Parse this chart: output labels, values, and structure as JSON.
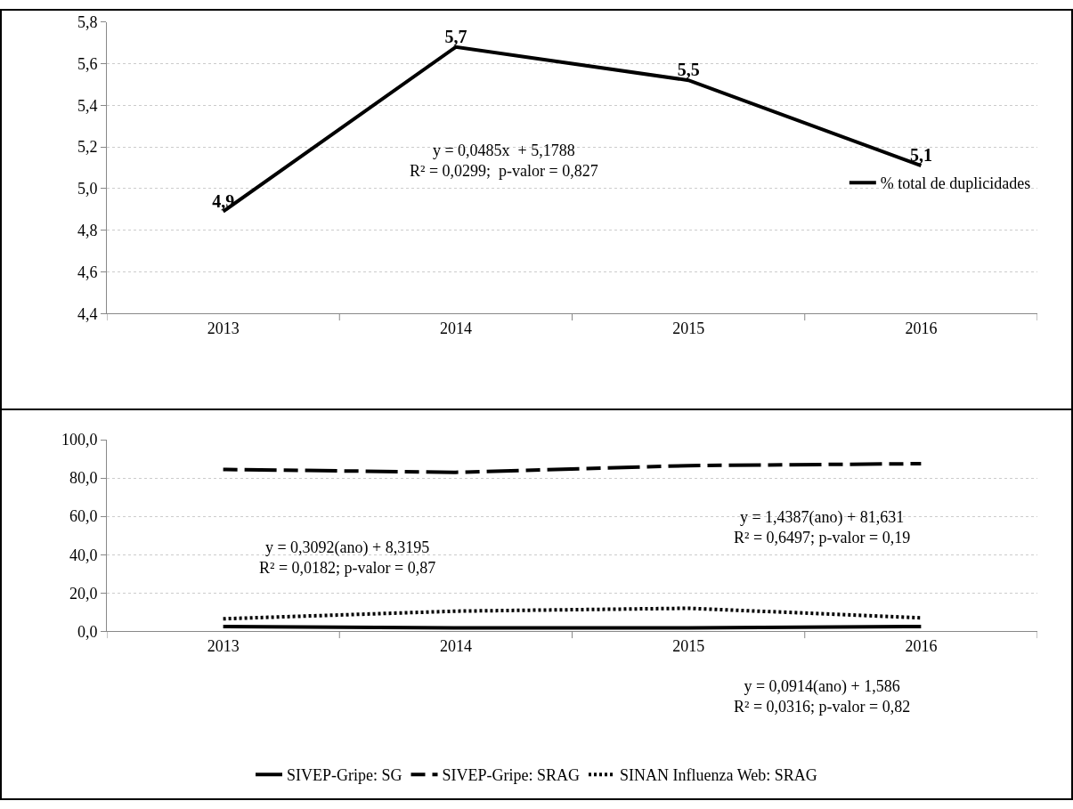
{
  "chart_data": [
    {
      "type": "line",
      "categories": [
        "2013",
        "2014",
        "2015",
        "2016"
      ],
      "series": [
        {
          "name": "% total de duplicidades",
          "color": "#000000",
          "values": [
            4.89,
            5.68,
            5.52,
            5.11
          ],
          "value_labels": [
            "4,9",
            "5,7",
            "5,5",
            "5,1"
          ]
        }
      ],
      "ylim": [
        4.4,
        5.8
      ],
      "yticks": [
        {
          "value": 4.4,
          "label": "4,4"
        },
        {
          "value": 4.6,
          "label": "4,6"
        },
        {
          "value": 4.8,
          "label": "4,8"
        },
        {
          "value": 5.0,
          "label": "5,0"
        },
        {
          "value": 5.2,
          "label": "5,2"
        },
        {
          "value": 5.4,
          "label": "5,4"
        },
        {
          "value": 5.6,
          "label": "5,6"
        },
        {
          "value": 5.8,
          "label": "5,8"
        }
      ],
      "grid": "y",
      "legend": "right",
      "line_style": "solid",
      "annotations": [
        "y = 0,0485x  + 5,1788\nR² = 0,0299;  p-valor = 0,827"
      ]
    },
    {
      "type": "line",
      "categories": [
        "2013",
        "2014",
        "2015",
        "2016"
      ],
      "series": [
        {
          "name": "SIVEP-Gripe: SG",
          "color": "#000000",
          "values": [
            2.5,
            1.7,
            1.7,
            2.5
          ],
          "line_style": "solid"
        },
        {
          "name": "SIVEP-Gripe: SRAG",
          "color": "#000000",
          "values": [
            84.5,
            83,
            86.5,
            87.5
          ],
          "line_style": "dashed"
        },
        {
          "name": "SINAN Influenza Web: SRAG",
          "color": "#000000",
          "values": [
            6.5,
            10.5,
            12,
            7
          ],
          "line_style": "dotted"
        }
      ],
      "ylim": [
        0,
        100
      ],
      "yticks": [
        {
          "value": 0,
          "label": "0,0"
        },
        {
          "value": 20,
          "label": "20,0"
        },
        {
          "value": 40,
          "label": "40,0"
        },
        {
          "value": 60,
          "label": "60,0"
        },
        {
          "value": 80,
          "label": "80,0"
        },
        {
          "value": 100,
          "label": "100,0"
        }
      ],
      "grid": "y",
      "legend": "bottom",
      "annotations": [
        "y = 1,4387(ano) + 81,631\nR² = 0,6497; p-valor = 0,19",
        "y = 0,3092(ano) + 8,3195\nR² = 0,0182; p-valor = 0,87",
        "y = 0,0914(ano) + 1,586\nR² = 0,0316; p-valor = 0,82"
      ]
    }
  ]
}
